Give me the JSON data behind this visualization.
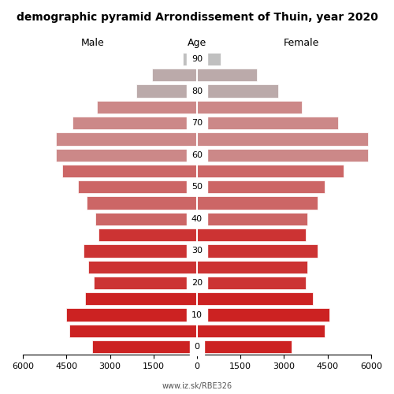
{
  "title": "demographic pyramid Arrondissement of Thuin, year 2020",
  "male_label": "Male",
  "female_label": "Female",
  "age_label": "Age",
  "url": "www.iz.sk/RBE326",
  "age_groups": [
    0,
    5,
    10,
    15,
    20,
    25,
    30,
    35,
    40,
    45,
    50,
    55,
    60,
    65,
    70,
    75,
    80,
    85,
    90
  ],
  "male_values": [
    3600,
    4400,
    4500,
    3850,
    3550,
    3750,
    3900,
    3400,
    3500,
    3800,
    4100,
    4650,
    4850,
    4850,
    4300,
    3450,
    2100,
    1550,
    480
  ],
  "female_values": [
    3250,
    4400,
    4550,
    4000,
    3750,
    3800,
    4150,
    3750,
    3800,
    4150,
    4400,
    5050,
    5900,
    5900,
    4850,
    3600,
    2800,
    2050,
    820
  ],
  "colors": [
    "#cc2222",
    "#cc2222",
    "#cc2222",
    "#cc2222",
    "#cc3333",
    "#cc3333",
    "#cc3333",
    "#cc3333",
    "#cc6666",
    "#cc6666",
    "#cc6666",
    "#cc6666",
    "#cc8888",
    "#cc8888",
    "#cc8888",
    "#cc8888",
    "#bbaaaa",
    "#bbaaaa",
    "#c0c0c0"
  ],
  "xlim": 6000,
  "bar_height": 0.8,
  "bg_color": "#ffffff",
  "tick_fontsize": 8,
  "label_fontsize": 9,
  "title_fontsize": 10
}
